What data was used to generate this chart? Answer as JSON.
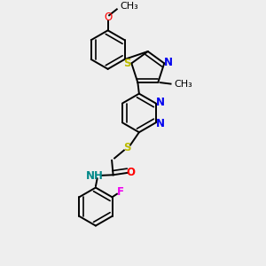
{
  "bg_color": "#eeeeee",
  "bond_color": "#000000",
  "lw": 1.4,
  "atom_colors": {
    "O": "#ff0000",
    "N": "#0000ee",
    "S": "#bbbb00",
    "F": "#ee00ee",
    "NH": "#008888",
    "C": "#000000"
  },
  "fontsize": 8.5
}
